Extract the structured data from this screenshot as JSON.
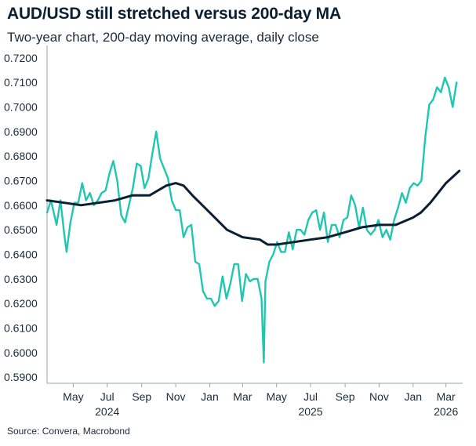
{
  "title": "AUD/USD still stretched versus 200-day MA",
  "subtitle": "Two-year chart, 200-day moving average, daily close",
  "source": "Source: Convera, Macrobond",
  "chart_data": {
    "type": "line",
    "title": "AUD/USD still stretched versus 200-day MA",
    "subtitle": "Two-year chart, 200-day moving average, daily close",
    "xlabel": "",
    "ylabel": "",
    "xlim": [
      "2024-03-15",
      "2026-03-31"
    ],
    "ylim": [
      0.5875,
      0.7225
    ],
    "y_ticks": [
      "0.7200",
      "0.7100",
      "0.7000",
      "0.6900",
      "0.6800",
      "0.6700",
      "0.6600",
      "0.6500",
      "0.6400",
      "0.6300",
      "0.6200",
      "0.6100",
      "0.6000",
      "0.5900"
    ],
    "x_month_ticks": [
      {
        "label": "May",
        "date": "2024-05-01"
      },
      {
        "label": "Jul",
        "date": "2024-07-01"
      },
      {
        "label": "Sep",
        "date": "2024-09-01"
      },
      {
        "label": "Nov",
        "date": "2024-11-01"
      },
      {
        "label": "Jan",
        "date": "2025-01-01"
      },
      {
        "label": "Mar",
        "date": "2025-03-01"
      },
      {
        "label": "May",
        "date": "2025-05-01"
      },
      {
        "label": "Jul",
        "date": "2025-07-01"
      },
      {
        "label": "Sep",
        "date": "2025-09-01"
      },
      {
        "label": "Nov",
        "date": "2025-11-01"
      },
      {
        "label": "Jan",
        "date": "2026-01-01"
      },
      {
        "label": "Mar",
        "date": "2026-03-01"
      }
    ],
    "x_year_labels": [
      {
        "label": "2024",
        "date": "2024-07-01"
      },
      {
        "label": "2025",
        "date": "2025-07-01"
      },
      {
        "label": "2026",
        "date": "2026-03-01"
      }
    ],
    "grid": false,
    "series": [
      {
        "color": "#1fc7b0",
        "points": [
          [
            "2024-03-15",
            0.657
          ],
          [
            "2024-03-22",
            0.662
          ],
          [
            "2024-04-01",
            0.652
          ],
          [
            "2024-04-08",
            0.662
          ],
          [
            "2024-04-15",
            0.648
          ],
          [
            "2024-04-19",
            0.641
          ],
          [
            "2024-04-26",
            0.653
          ],
          [
            "2024-05-03",
            0.661
          ],
          [
            "2024-05-10",
            0.661
          ],
          [
            "2024-05-17",
            0.669
          ],
          [
            "2024-05-24",
            0.662
          ],
          [
            "2024-05-31",
            0.665
          ],
          [
            "2024-06-07",
            0.66
          ],
          [
            "2024-06-14",
            0.662
          ],
          [
            "2024-06-21",
            0.665
          ],
          [
            "2024-06-28",
            0.666
          ],
          [
            "2024-07-05",
            0.673
          ],
          [
            "2024-07-12",
            0.678
          ],
          [
            "2024-07-19",
            0.67
          ],
          [
            "2024-07-26",
            0.656
          ],
          [
            "2024-08-02",
            0.653
          ],
          [
            "2024-08-09",
            0.66
          ],
          [
            "2024-08-16",
            0.667
          ],
          [
            "2024-08-23",
            0.677
          ],
          [
            "2024-08-30",
            0.676
          ],
          [
            "2024-09-06",
            0.667
          ],
          [
            "2024-09-13",
            0.671
          ],
          [
            "2024-09-20",
            0.681
          ],
          [
            "2024-09-27",
            0.69
          ],
          [
            "2024-10-04",
            0.679
          ],
          [
            "2024-10-11",
            0.675
          ],
          [
            "2024-10-18",
            0.671
          ],
          [
            "2024-10-25",
            0.662
          ],
          [
            "2024-11-01",
            0.658
          ],
          [
            "2024-11-08",
            0.658
          ],
          [
            "2024-11-15",
            0.647
          ],
          [
            "2024-11-22",
            0.651
          ],
          [
            "2024-11-29",
            0.652
          ],
          [
            "2024-12-06",
            0.637
          ],
          [
            "2024-12-13",
            0.636
          ],
          [
            "2024-12-20",
            0.625
          ],
          [
            "2024-12-27",
            0.622
          ],
          [
            "2025-01-03",
            0.622
          ],
          [
            "2025-01-10",
            0.619
          ],
          [
            "2025-01-17",
            0.621
          ],
          [
            "2025-01-24",
            0.631
          ],
          [
            "2025-01-31",
            0.622
          ],
          [
            "2025-02-07",
            0.628
          ],
          [
            "2025-02-14",
            0.636
          ],
          [
            "2025-02-21",
            0.636
          ],
          [
            "2025-02-28",
            0.621
          ],
          [
            "2025-03-07",
            0.632
          ],
          [
            "2025-03-14",
            0.629
          ],
          [
            "2025-03-21",
            0.63
          ],
          [
            "2025-03-28",
            0.63
          ],
          [
            "2025-04-04",
            0.622
          ],
          [
            "2025-04-08",
            0.596
          ],
          [
            "2025-04-11",
            0.629
          ],
          [
            "2025-04-18",
            0.637
          ],
          [
            "2025-04-25",
            0.64
          ],
          [
            "2025-05-02",
            0.645
          ],
          [
            "2025-05-09",
            0.641
          ],
          [
            "2025-05-16",
            0.641
          ],
          [
            "2025-05-23",
            0.649
          ],
          [
            "2025-05-30",
            0.642
          ],
          [
            "2025-06-06",
            0.65
          ],
          [
            "2025-06-13",
            0.65
          ],
          [
            "2025-06-20",
            0.648
          ],
          [
            "2025-06-27",
            0.654
          ],
          [
            "2025-07-04",
            0.657
          ],
          [
            "2025-07-11",
            0.658
          ],
          [
            "2025-07-18",
            0.65
          ],
          [
            "2025-07-25",
            0.657
          ],
          [
            "2025-08-01",
            0.645
          ],
          [
            "2025-08-08",
            0.652
          ],
          [
            "2025-08-15",
            0.652
          ],
          [
            "2025-08-22",
            0.647
          ],
          [
            "2025-08-29",
            0.654
          ],
          [
            "2025-09-05",
            0.655
          ],
          [
            "2025-09-12",
            0.664
          ],
          [
            "2025-09-19",
            0.66
          ],
          [
            "2025-09-26",
            0.651
          ],
          [
            "2025-10-03",
            0.659
          ],
          [
            "2025-10-10",
            0.65
          ],
          [
            "2025-10-17",
            0.648
          ],
          [
            "2025-10-24",
            0.65
          ],
          [
            "2025-10-31",
            0.654
          ],
          [
            "2025-11-07",
            0.647
          ],
          [
            "2025-11-14",
            0.65
          ],
          [
            "2025-11-21",
            0.646
          ],
          [
            "2025-11-28",
            0.654
          ],
          [
            "2025-12-05",
            0.659
          ],
          [
            "2025-12-12",
            0.665
          ],
          [
            "2025-12-19",
            0.661
          ],
          [
            "2025-12-26",
            0.667
          ],
          [
            "2026-01-02",
            0.669
          ],
          [
            "2026-01-09",
            0.668
          ],
          [
            "2026-01-16",
            0.67
          ],
          [
            "2026-01-23",
            0.688
          ],
          [
            "2026-01-30",
            0.701
          ],
          [
            "2026-02-06",
            0.703
          ],
          [
            "2026-02-13",
            0.708
          ],
          [
            "2026-02-20",
            0.706
          ],
          [
            "2026-02-27",
            0.712
          ],
          [
            "2026-03-06",
            0.708
          ],
          [
            "2026-03-13",
            0.7
          ],
          [
            "2026-03-20",
            0.71
          ]
        ]
      },
      {
        "color": "#0b1f33",
        "points": [
          [
            "2024-03-15",
            0.662
          ],
          [
            "2024-04-15",
            0.661
          ],
          [
            "2024-05-15",
            0.66
          ],
          [
            "2024-06-15",
            0.661
          ],
          [
            "2024-07-15",
            0.662
          ],
          [
            "2024-08-15",
            0.664
          ],
          [
            "2024-09-15",
            0.664
          ],
          [
            "2024-10-15",
            0.668
          ],
          [
            "2024-11-01",
            0.669
          ],
          [
            "2024-11-15",
            0.668
          ],
          [
            "2024-12-01",
            0.664
          ],
          [
            "2025-01-01",
            0.657
          ],
          [
            "2025-02-01",
            0.65
          ],
          [
            "2025-03-01",
            0.647
          ],
          [
            "2025-04-01",
            0.646
          ],
          [
            "2025-04-15",
            0.644
          ],
          [
            "2025-05-01",
            0.644
          ],
          [
            "2025-06-01",
            0.645
          ],
          [
            "2025-07-01",
            0.646
          ],
          [
            "2025-08-01",
            0.647
          ],
          [
            "2025-09-01",
            0.649
          ],
          [
            "2025-10-01",
            0.651
          ],
          [
            "2025-11-01",
            0.652
          ],
          [
            "2025-12-01",
            0.652
          ],
          [
            "2026-01-01",
            0.655
          ],
          [
            "2026-01-15",
            0.657
          ],
          [
            "2026-02-01",
            0.661
          ],
          [
            "2026-03-01",
            0.669
          ],
          [
            "2026-03-25",
            0.674
          ]
        ]
      }
    ]
  }
}
